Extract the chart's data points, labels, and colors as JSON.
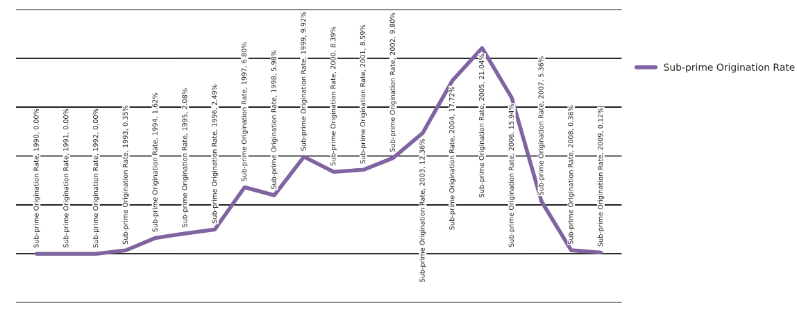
{
  "chart_data": {
    "type": "line",
    "categories": [
      null,
      null,
      null,
      null,
      null,
      null,
      null,
      null,
      null,
      null,
      null,
      null,
      null,
      null,
      null,
      null,
      null,
      null,
      null,
      null
    ],
    "series": [
      {
        "name": "Sub-prime Origination Rate",
        "color": "#8064a2",
        "values": [
          0.0,
          0.0,
          0.0,
          0.35,
          1.62,
          2.08,
          2.49,
          6.8,
          5.98,
          9.92,
          8.39,
          8.59,
          9.8,
          12.36,
          17.72,
          21.04,
          15.94,
          5.36,
          0.36,
          0.12
        ],
        "value_labels": [
          "Sub-prime Origination Rate, 1990, 0.00%",
          "Sub-prime Origination Rate, 1991, 0.00%",
          "Sub-prime Origination Rate, 1992, 0.00%",
          "Sub-prime Origination Rate, 1993, 0.35%",
          "Sub-prime Origination Rate, 1994, 1.62%",
          "Sub-prime Origination Rate, 1995, 2.08%",
          "Sub-prime Origination Rate, 1996, 2.49%",
          "Sub-prime Origination Rate, 1997, 6.80%",
          "Sub-prime Origination Rate, 1998, 5.98%",
          "Sub-prime Origination Rate, 1999, 9.92%",
          "Sub-prime Origination Rate, 2000, 8.39%",
          "Sub-prime Origination Rate, 2001, 8.59%",
          "Sub-prime Origination Rate, 2002, 9.80%",
          "Sub-prime Origination Rate, 2003, 12.36%",
          "Sub-prime Origination Rate, 2004, 17.72%",
          "Sub-prime Origination Rate, 2005, 21.04%",
          "Sub-prime Origination Rate, 2006, 15.94%",
          "Sub-prime Origination Rate, 2007, 5.36%",
          "Sub-prime Origination Rate, 2008, 0.36%",
          "Sub-prime Origination Rate, 2009, 0.12%"
        ]
      }
    ],
    "ylim": [
      -5,
      25
    ],
    "yticks": [
      {
        "value": -5,
        "label": null
      },
      {
        "value": 0,
        "label": null
      },
      {
        "value": 5,
        "label": null
      },
      {
        "value": 10,
        "label": null
      },
      {
        "value": 15,
        "label": null
      },
      {
        "value": 20,
        "label": null
      },
      {
        "value": 25,
        "label": null
      }
    ],
    "grid": "y",
    "legend": "right",
    "line_style": "solid",
    "marker": "none"
  }
}
